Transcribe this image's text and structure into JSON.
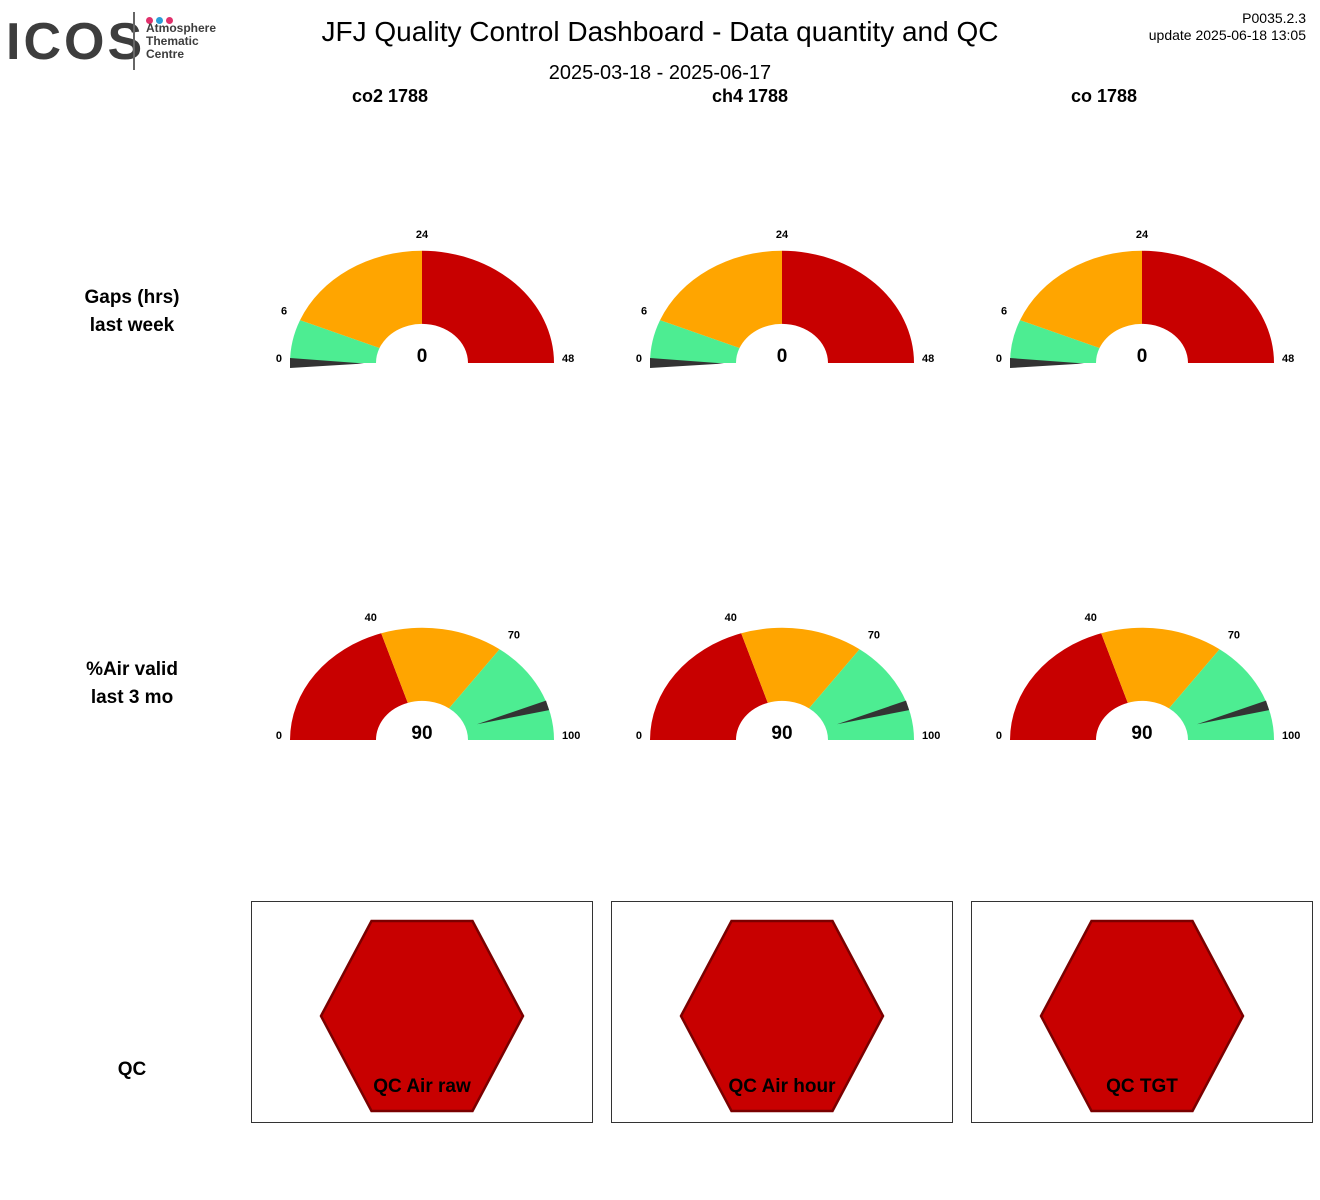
{
  "header": {
    "logo": {
      "wordmark": "ICOS",
      "line1": "Atmosphere",
      "line2": "Thematic",
      "line3": "Centre",
      "dot_colors": [
        "#e0306b",
        "#2a9fd8",
        "#e0306b"
      ]
    },
    "title": "JFJ  Quality Control Dashboard - Data quantity and QC",
    "period": "2025-03-18 - 2025-06-17",
    "version": "P0035.2.3",
    "update": "update  2025-06-18 13:05"
  },
  "columns": [
    {
      "title": "co2 1788"
    },
    {
      "title": "ch4 1788"
    },
    {
      "title": "co 1788"
    }
  ],
  "rows": {
    "gaps": {
      "line1": "Gaps (hrs)",
      "line2": "last week"
    },
    "air": {
      "line1": "%Air valid",
      "line2": "last 3 mo"
    },
    "qc": {
      "label": "QC"
    }
  },
  "colors": {
    "red": "#c80000",
    "orange": "#ffa500",
    "green": "#4ded92",
    "needle": "#333333",
    "qc_edge": "#7a0000"
  },
  "chart_data": [
    {
      "type": "gauge",
      "title": "Gaps (hrs) last week",
      "panel": "co2 1788",
      "min": 0,
      "max": 48,
      "value": 0,
      "value_label": "0",
      "ticks": [
        0,
        6,
        24,
        48
      ],
      "bands": [
        {
          "from": 0,
          "to": 6,
          "color": "green"
        },
        {
          "from": 6,
          "to": 24,
          "color": "orange"
        },
        {
          "from": 24,
          "to": 48,
          "color": "red"
        }
      ]
    },
    {
      "type": "gauge",
      "title": "Gaps (hrs) last week",
      "panel": "ch4 1788",
      "min": 0,
      "max": 48,
      "value": 0,
      "value_label": "0",
      "ticks": [
        0,
        6,
        24,
        48
      ],
      "bands": [
        {
          "from": 0,
          "to": 6,
          "color": "green"
        },
        {
          "from": 6,
          "to": 24,
          "color": "orange"
        },
        {
          "from": 24,
          "to": 48,
          "color": "red"
        }
      ]
    },
    {
      "type": "gauge",
      "title": "Gaps (hrs) last week",
      "panel": "co 1788",
      "min": 0,
      "max": 48,
      "value": 0,
      "value_label": "0",
      "ticks": [
        0,
        6,
        24,
        48
      ],
      "bands": [
        {
          "from": 0,
          "to": 6,
          "color": "green"
        },
        {
          "from": 6,
          "to": 24,
          "color": "orange"
        },
        {
          "from": 24,
          "to": 48,
          "color": "red"
        }
      ]
    },
    {
      "type": "gauge",
      "title": "%Air valid last 3 mo",
      "panel": "co2 1788",
      "min": 0,
      "max": 100,
      "value": 90,
      "value_label": "90",
      "ticks": [
        0,
        40,
        70,
        100
      ],
      "bands": [
        {
          "from": 0,
          "to": 40,
          "color": "red"
        },
        {
          "from": 40,
          "to": 70,
          "color": "orange"
        },
        {
          "from": 70,
          "to": 100,
          "color": "green"
        }
      ]
    },
    {
      "type": "gauge",
      "title": "%Air valid last 3 mo",
      "panel": "ch4 1788",
      "min": 0,
      "max": 100,
      "value": 90,
      "value_label": "90",
      "ticks": [
        0,
        40,
        70,
        100
      ],
      "bands": [
        {
          "from": 0,
          "to": 40,
          "color": "red"
        },
        {
          "from": 40,
          "to": 70,
          "color": "orange"
        },
        {
          "from": 70,
          "to": 100,
          "color": "green"
        }
      ]
    },
    {
      "type": "gauge",
      "title": "%Air valid last 3 mo",
      "panel": "co 1788",
      "min": 0,
      "max": 100,
      "value": 90,
      "value_label": "90",
      "ticks": [
        0,
        40,
        70,
        100
      ],
      "bands": [
        {
          "from": 0,
          "to": 40,
          "color": "red"
        },
        {
          "from": 40,
          "to": 70,
          "color": "orange"
        },
        {
          "from": 70,
          "to": 100,
          "color": "green"
        }
      ]
    }
  ],
  "qc_indicators": [
    {
      "label": "QC Air raw",
      "status_color": "red"
    },
    {
      "label": "QC Air hour",
      "status_color": "red"
    },
    {
      "label": "QC TGT",
      "status_color": "red"
    }
  ]
}
